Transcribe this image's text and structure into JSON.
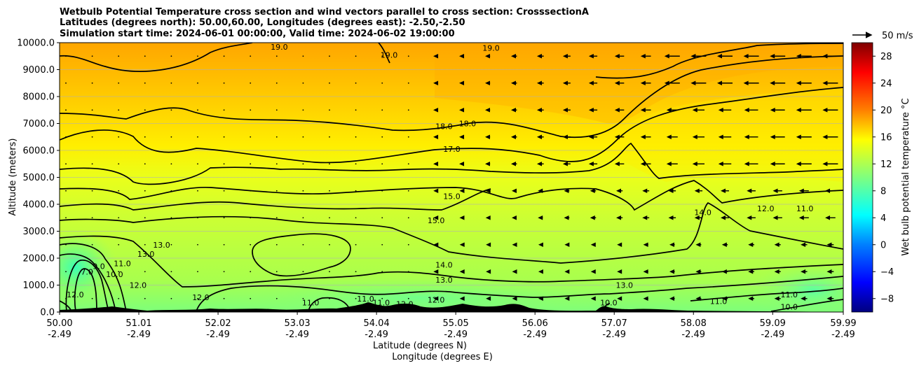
{
  "chart_data": {
    "type": "heatmap",
    "title_lines": [
      "Wetbulb Potential Temperature cross section and wind vectors parallel to cross section: CrosssectionA",
      "Latitudes (degrees north): 50.00,60.00, Longitudes (degrees east): -2.50,-2.50",
      "Simulation start time: 2024-06-01 00:00:00, Valid time: 2024-06-02 19:00:00"
    ],
    "xlabel_lines": [
      "Latitude (degrees N)",
      "Longitude (degrees E)"
    ],
    "ylabel": "Altitude (meters)",
    "x_ticks": [
      {
        "lat": "50.00",
        "lon": "-2.49"
      },
      {
        "lat": "51.01",
        "lon": "-2.49"
      },
      {
        "lat": "52.02",
        "lon": "-2.49"
      },
      {
        "lat": "53.03",
        "lon": "-2.49"
      },
      {
        "lat": "54.04",
        "lon": "-2.49"
      },
      {
        "lat": "55.05",
        "lon": "-2.49"
      },
      {
        "lat": "56.06",
        "lon": "-2.49"
      },
      {
        "lat": "57.07",
        "lon": "-2.49"
      },
      {
        "lat": "58.08",
        "lon": "-2.49"
      },
      {
        "lat": "59.09",
        "lon": "-2.49"
      },
      {
        "lat": "59.99",
        "lon": "-2.49"
      }
    ],
    "xlim": [
      50.0,
      59.99
    ],
    "y_ticks": [
      "0.0",
      "1000.0",
      "2000.0",
      "3000.0",
      "4000.0",
      "5000.0",
      "6000.0",
      "7000.0",
      "8000.0",
      "9000.0",
      "10000.0"
    ],
    "ylim": [
      0,
      10000
    ],
    "grid": "horizontal",
    "colorbar": {
      "label": "Wet bulb potential temperature $^\\circ$C",
      "label_text": "Wet bulb potential temperature °C",
      "range": [
        -10,
        30
      ],
      "ticks": [
        "−8",
        "−4",
        "0",
        "4",
        "8",
        "12",
        "16",
        "20",
        "24",
        "28"
      ],
      "tick_values": [
        -8,
        -4,
        0,
        4,
        8,
        12,
        16,
        20,
        24,
        28
      ]
    },
    "quiver_key": {
      "label": "50 m/s",
      "value": 50
    },
    "contour_labels": [
      {
        "text": "19.0",
        "lat": 52.8,
        "alt": 9850
      },
      {
        "text": "19.0",
        "lat": 54.2,
        "alt": 9550
      },
      {
        "text": "19.0",
        "lat": 55.5,
        "alt": 9800
      },
      {
        "text": "18.0",
        "lat": 54.9,
        "alt": 6900
      },
      {
        "text": "18.0",
        "lat": 55.2,
        "alt": 7000
      },
      {
        "text": "17.0",
        "lat": 55.0,
        "alt": 6050
      },
      {
        "text": "15.0",
        "lat": 55.0,
        "alt": 4300
      },
      {
        "text": "15.0",
        "lat": 54.8,
        "alt": 3400
      },
      {
        "text": "14.0",
        "lat": 54.9,
        "alt": 1750
      },
      {
        "text": "13.0",
        "lat": 54.9,
        "alt": 1200
      },
      {
        "text": "13.0",
        "lat": 51.3,
        "alt": 2500
      },
      {
        "text": "13.0",
        "lat": 51.1,
        "alt": 2150
      },
      {
        "text": "13.0",
        "lat": 57.2,
        "alt": 1000
      },
      {
        "text": "12.0",
        "lat": 51.0,
        "alt": 1000
      },
      {
        "text": "12.0",
        "lat": 51.8,
        "alt": 550
      },
      {
        "text": "12.0",
        "lat": 54.4,
        "alt": 300
      },
      {
        "text": "12.0",
        "lat": 54.8,
        "alt": 450
      },
      {
        "text": "12.0",
        "lat": 50.2,
        "alt": 650
      },
      {
        "text": "12.0",
        "lat": 59.0,
        "alt": 3850
      },
      {
        "text": "11.0",
        "lat": 50.8,
        "alt": 1800
      },
      {
        "text": "11.0",
        "lat": 53.2,
        "alt": 350
      },
      {
        "text": "11.0",
        "lat": 53.9,
        "alt": 500
      },
      {
        "text": "11.0",
        "lat": 54.1,
        "alt": 350
      },
      {
        "text": "11.0",
        "lat": 59.3,
        "alt": 650
      },
      {
        "text": "11.0",
        "lat": 58.4,
        "alt": 400
      },
      {
        "text": "11.0",
        "lat": 59.5,
        "alt": 3850
      },
      {
        "text": "10.0",
        "lat": 50.7,
        "alt": 1400
      },
      {
        "text": "10.0",
        "lat": 59.3,
        "alt": 200
      },
      {
        "text": "9.0",
        "lat": 50.5,
        "alt": 1700
      },
      {
        "text": "7.0",
        "lat": 50.35,
        "alt": 1500
      },
      {
        "text": "14.0",
        "lat": 58.2,
        "alt": 3700
      },
      {
        "text": "10.0",
        "lat": 57.0,
        "alt": 350
      }
    ]
  }
}
